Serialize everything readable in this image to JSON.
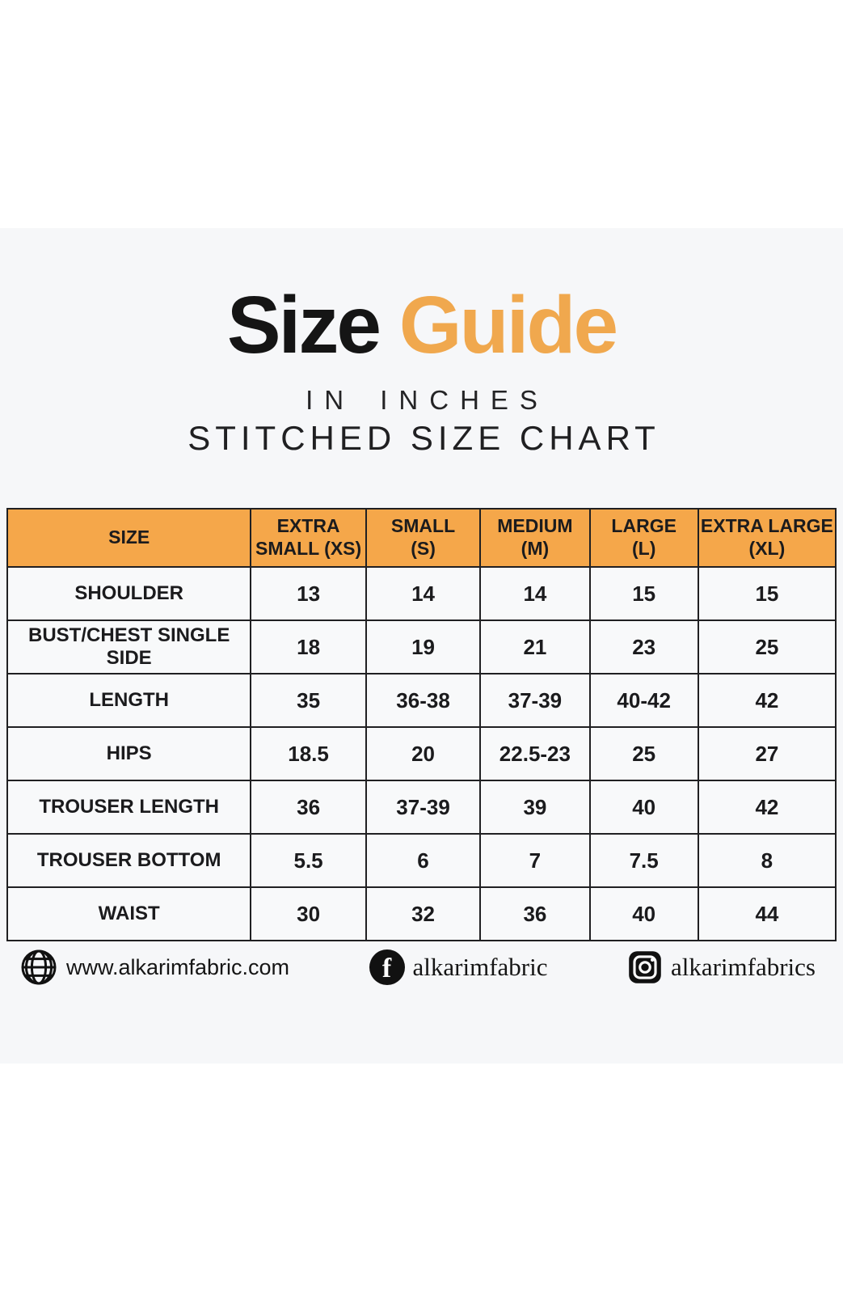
{
  "header": {
    "title_black": "Size",
    "title_orange": "Guide",
    "subtitle": "IN INCHES",
    "chart_label": "STITCHED SIZE CHART"
  },
  "chart_data": {
    "type": "table",
    "title": "Size Guide",
    "units": "inches",
    "columns": [
      {
        "lines": [
          "SIZE"
        ]
      },
      {
        "lines": [
          "EXTRA",
          "SMALL (XS)"
        ]
      },
      {
        "lines": [
          "SMALL",
          "(S)"
        ]
      },
      {
        "lines": [
          "MEDIUM",
          "(M)"
        ]
      },
      {
        "lines": [
          "LARGE",
          "(L)"
        ]
      },
      {
        "lines": [
          "EXTRA LARGE",
          "(XL)"
        ]
      }
    ],
    "rows": [
      {
        "label": "SHOULDER",
        "values": [
          "13",
          "14",
          "14",
          "15",
          "15"
        ]
      },
      {
        "label": "BUST/CHEST SINGLE SIDE",
        "values": [
          "18",
          "19",
          "21",
          "23",
          "25"
        ]
      },
      {
        "label": "LENGTH",
        "values": [
          "35",
          "36-38",
          "37-39",
          "40-42",
          "42"
        ]
      },
      {
        "label": "HIPS",
        "values": [
          "18.5",
          "20",
          "22.5-23",
          "25",
          "27"
        ]
      },
      {
        "label": "TROUSER LENGTH",
        "values": [
          "36",
          "37-39",
          "39",
          "40",
          "42"
        ]
      },
      {
        "label": "TROUSER BOTTOM",
        "values": [
          "5.5",
          "6",
          "7",
          "7.5",
          "8"
        ]
      },
      {
        "label": "WAIST",
        "values": [
          "30",
          "32",
          "36",
          "40",
          "44"
        ]
      }
    ]
  },
  "footer": {
    "website": "www.alkarimfabric.com",
    "facebook": "alkarimfabric",
    "instagram": "alkarimfabrics",
    "facebook_icon_letter": "f"
  },
  "icons": {
    "website": "globe-icon",
    "facebook": "facebook-icon",
    "instagram": "instagram-icon"
  },
  "colors": {
    "accent_orange_header": "#f5a74a",
    "accent_orange_title": "#f0a84e",
    "card_background": "#f6f7f9",
    "text": "#1a1a1c",
    "border": "#202022"
  }
}
